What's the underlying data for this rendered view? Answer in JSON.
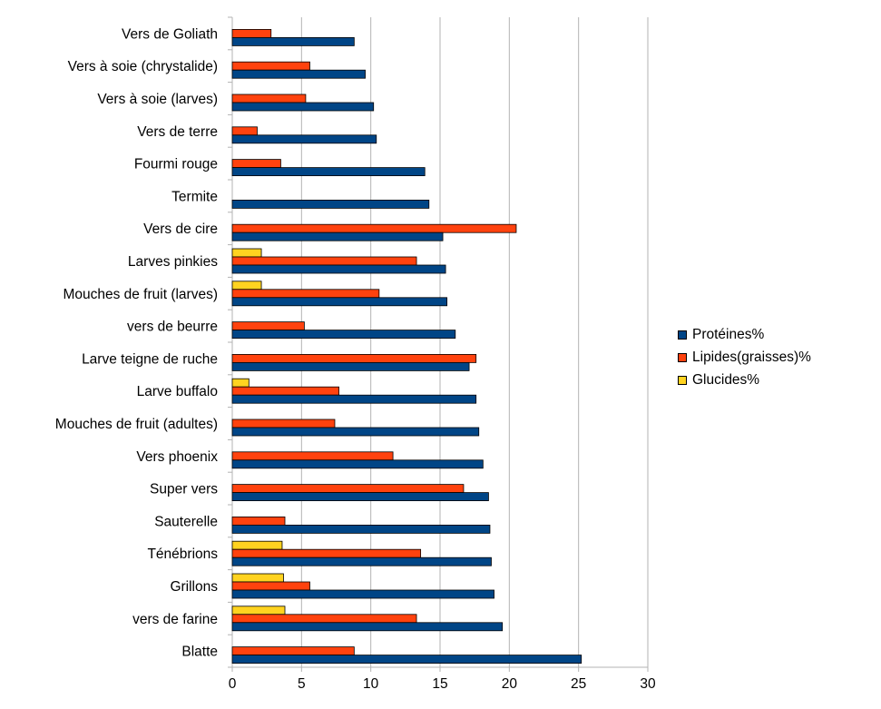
{
  "chart_data": {
    "type": "bar",
    "orientation": "horizontal",
    "title": "",
    "xlabel": "",
    "ylabel": "",
    "xlim": [
      0,
      30
    ],
    "x_ticks": [
      "0",
      "5",
      "10",
      "15",
      "20",
      "25",
      "30"
    ],
    "grid": "vertical",
    "legend_position": "right",
    "categories": [
      "Vers de Goliath",
      "Vers à soie (chrystalide)",
      "Vers à soie (larves)",
      "Vers de terre",
      "Fourmi rouge",
      "Termite",
      "Vers de cire",
      "Larves pinkies",
      "Mouches de fruit (larves)",
      "vers de beurre",
      "Larve teigne de ruche",
      "Larve buffalo",
      "Mouches de fruit (adultes)",
      "Vers phoenix",
      "Super vers",
      "Sauterelle",
      "Ténébrions",
      "Grillons",
      "vers de farine",
      "Blatte"
    ],
    "series": [
      {
        "name": "Protéines%",
        "color": "#004586",
        "values": [
          8.8,
          9.6,
          10.2,
          10.4,
          13.9,
          14.2,
          15.2,
          15.4,
          15.5,
          16.1,
          17.1,
          17.6,
          17.8,
          18.1,
          18.5,
          18.6,
          18.7,
          18.9,
          19.5,
          25.2
        ]
      },
      {
        "name": "Lipides(graisses)%",
        "color": "#ff420e",
        "values": [
          2.8,
          5.6,
          5.3,
          1.8,
          3.5,
          0,
          20.5,
          13.3,
          10.6,
          5.2,
          17.6,
          7.7,
          7.4,
          11.6,
          16.7,
          3.8,
          13.6,
          5.6,
          13.3,
          8.8
        ]
      },
      {
        "name": "Glucides%",
        "color": "#ffd320",
        "values": [
          0,
          0,
          0,
          0,
          0,
          0,
          0,
          2.1,
          2.1,
          0,
          0,
          1.2,
          0,
          0,
          0,
          0,
          3.6,
          3.7,
          3.8,
          0
        ]
      }
    ]
  }
}
